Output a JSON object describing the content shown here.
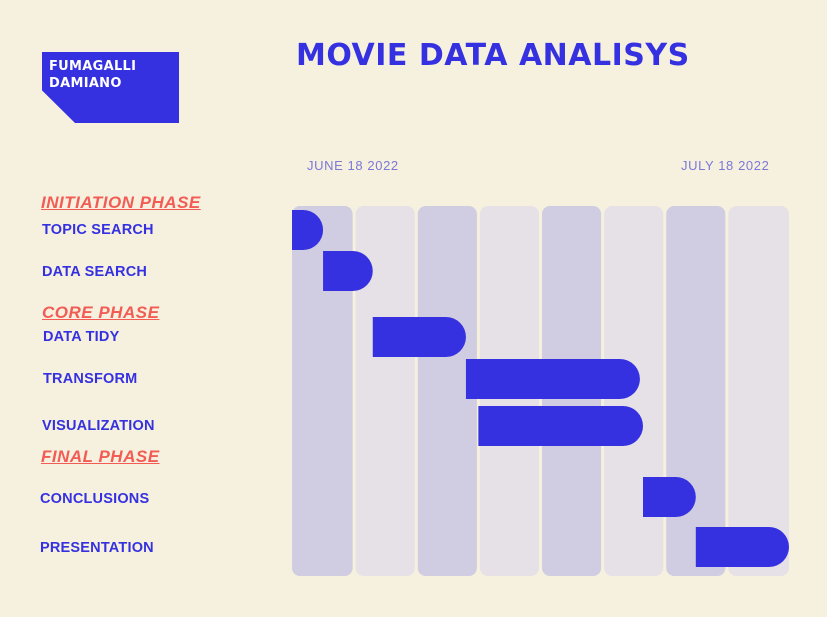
{
  "author": {
    "line1": "FUMAGALLI",
    "line2": "DAMIANO"
  },
  "title": "MOVIE DATA ANALISYS",
  "colors": {
    "background": "#f6f0df",
    "accent": "#3531e0",
    "phase": "#f25c54",
    "column_dark": "#d0cce1",
    "column_light": "#e6e1e6"
  },
  "chart_data": {
    "type": "gantt",
    "title": "MOVIE DATA ANALISYS",
    "x_axis": {
      "start_label": "JUNE 18 2022",
      "end_label": "JULY 18 2022",
      "columns": 8,
      "range": [
        0,
        8
      ]
    },
    "phases": [
      {
        "label": "INITIATION PHASE"
      },
      {
        "label": "CORE PHASE"
      },
      {
        "label": "FINAL PHASE"
      }
    ],
    "tasks": [
      {
        "label": "TOPIC SEARCH",
        "phase": 0,
        "start": 0.0,
        "end": 0.5
      },
      {
        "label": "DATA SEARCH",
        "phase": 0,
        "start": 0.5,
        "end": 1.3
      },
      {
        "label": "DATA TIDY",
        "phase": 1,
        "start": 1.3,
        "end": 2.8
      },
      {
        "label": "TRANSFORM",
        "phase": 1,
        "start": 2.8,
        "end": 5.6
      },
      {
        "label": "VISUALIZATION",
        "phase": 1,
        "start": 3.0,
        "end": 5.65
      },
      {
        "label": "CONCLUSIONS",
        "phase": 2,
        "start": 5.65,
        "end": 6.5
      },
      {
        "label": "PRESENTATION",
        "phase": 2,
        "start": 6.5,
        "end": 8.0
      }
    ]
  }
}
